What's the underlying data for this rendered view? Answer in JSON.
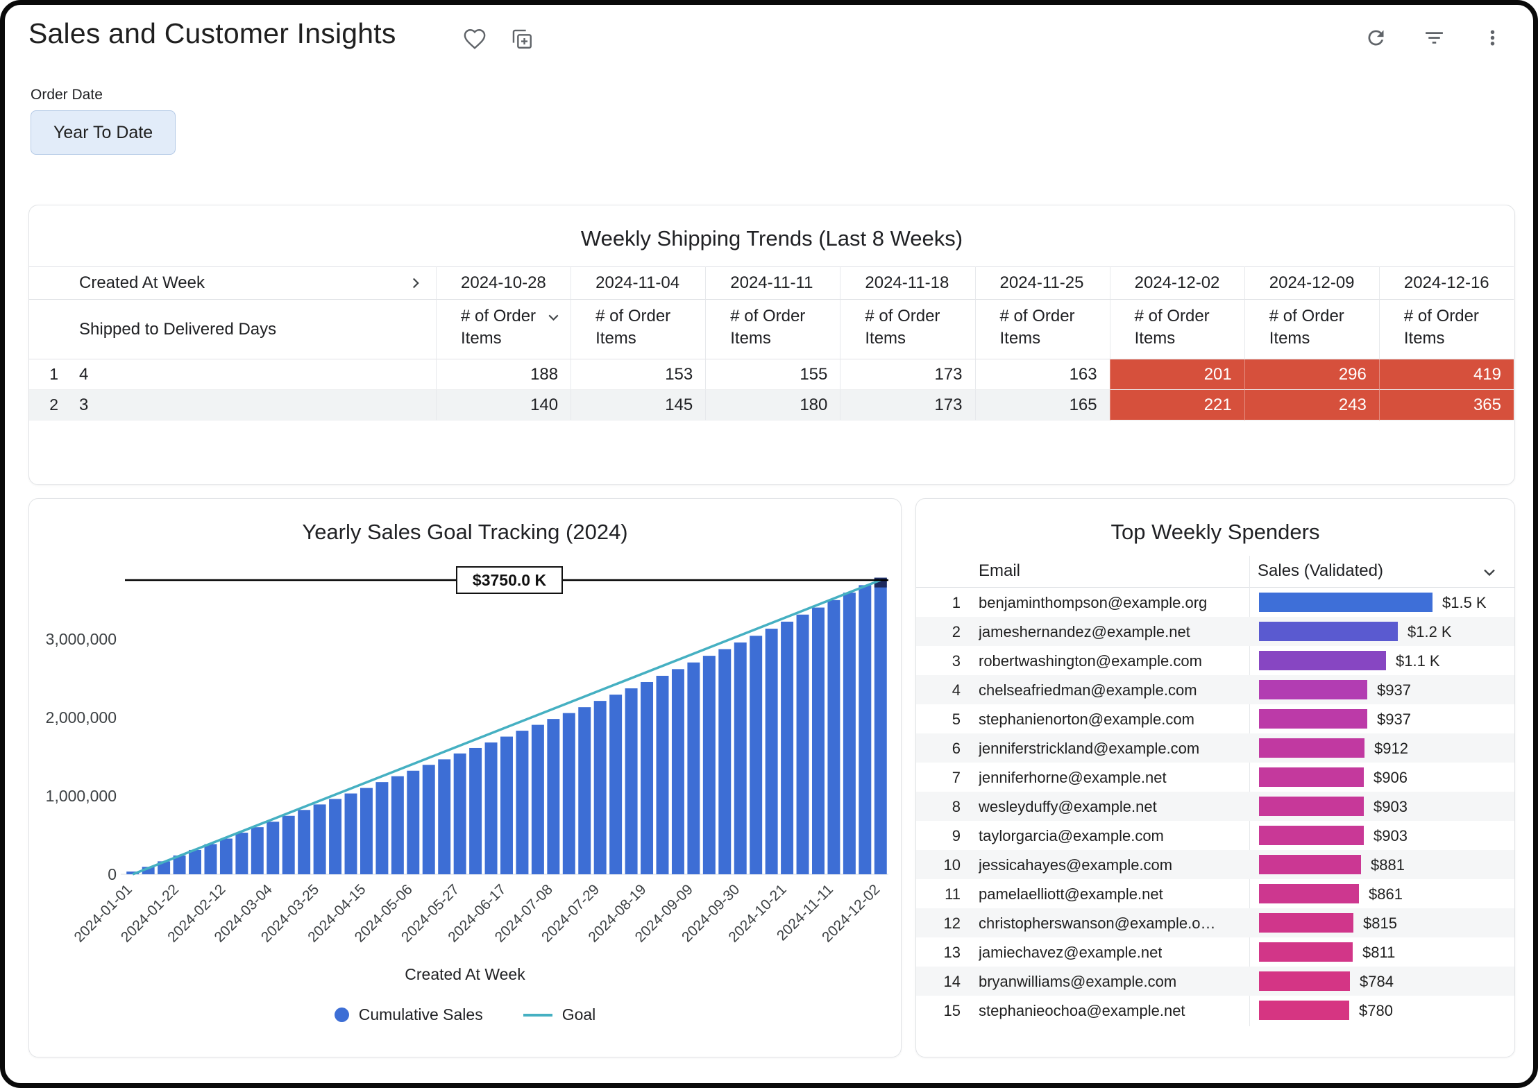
{
  "header": {
    "title": "Sales and Customer Insights"
  },
  "filter": {
    "label": "Order Date",
    "value": "Year To Date"
  },
  "chart_data": [
    {
      "id": "weekly_shipping_trends",
      "type": "table",
      "title": "Weekly Shipping Trends (Last 8 Weeks)",
      "row_header": "Created At Week",
      "col_header": "Shipped to Delivered Days",
      "measure_label": "# of Order Items",
      "columns": [
        "2024-10-28",
        "2024-11-04",
        "2024-11-11",
        "2024-11-18",
        "2024-11-25",
        "2024-12-02",
        "2024-12-09",
        "2024-12-16"
      ],
      "rows": [
        {
          "rank": 1,
          "label": "4",
          "values": [
            188,
            153,
            155,
            173,
            163,
            201,
            296,
            419
          ]
        },
        {
          "rank": 2,
          "label": "3",
          "values": [
            140,
            145,
            180,
            173,
            165,
            221,
            243,
            365
          ]
        }
      ],
      "alert_start_index": 5,
      "alert_color": "#d6503c"
    },
    {
      "id": "yearly_sales_goal_tracking",
      "type": "bar",
      "title": "Yearly Sales Goal Tracking (2024)",
      "xlabel": "Created At Week",
      "ylabel": "",
      "ylim": [
        0,
        3900000
      ],
      "yticks": [
        0,
        1000000,
        2000000,
        3000000
      ],
      "ytick_labels": [
        "0",
        "1,000,000",
        "2,000,000",
        "3,000,000"
      ],
      "x_tick_every": 3,
      "x": [
        "2024-01-01",
        "2024-01-08",
        "2024-01-15",
        "2024-01-22",
        "2024-01-29",
        "2024-02-05",
        "2024-02-12",
        "2024-02-19",
        "2024-02-26",
        "2024-03-04",
        "2024-03-11",
        "2024-03-18",
        "2024-03-25",
        "2024-04-01",
        "2024-04-08",
        "2024-04-15",
        "2024-04-22",
        "2024-04-29",
        "2024-05-06",
        "2024-05-13",
        "2024-05-20",
        "2024-05-27",
        "2024-06-03",
        "2024-06-10",
        "2024-06-17",
        "2024-06-24",
        "2024-07-01",
        "2024-07-08",
        "2024-07-15",
        "2024-07-22",
        "2024-07-29",
        "2024-08-05",
        "2024-08-12",
        "2024-08-19",
        "2024-08-26",
        "2024-09-02",
        "2024-09-09",
        "2024-09-16",
        "2024-09-23",
        "2024-09-30",
        "2024-10-07",
        "2024-10-14",
        "2024-10-21",
        "2024-10-28",
        "2024-11-04",
        "2024-11-11",
        "2024-11-18",
        "2024-11-25",
        "2024-12-02"
      ],
      "series": [
        {
          "name": "Cumulative Sales",
          "type": "bar",
          "color": "#3d6ed5",
          "values": [
            35000,
            95000,
            165000,
            240000,
            310000,
            385000,
            455000,
            530000,
            600000,
            670000,
            745000,
            820000,
            890000,
            960000,
            1030000,
            1100000,
            1175000,
            1250000,
            1320000,
            1395000,
            1465000,
            1540000,
            1610000,
            1680000,
            1755000,
            1830000,
            1905000,
            1980000,
            2055000,
            2130000,
            2210000,
            2290000,
            2370000,
            2450000,
            2530000,
            2615000,
            2700000,
            2785000,
            2870000,
            2955000,
            3040000,
            3130000,
            3220000,
            3310000,
            3400000,
            3495000,
            3590000,
            3685000,
            3780000
          ]
        },
        {
          "name": "Goal",
          "type": "line",
          "color": "#45b0c2",
          "start": 0,
          "end": 3750000
        }
      ],
      "reference_line": {
        "value": 3750000,
        "label": "$3750.0 K",
        "color": "#000000"
      },
      "last_bar_cap_color": "#1d2a5e",
      "legend_position": "bottom",
      "grid": false
    },
    {
      "id": "top_weekly_spenders",
      "type": "bar",
      "orientation": "horizontal",
      "title": "Top Weekly Spenders",
      "columns": [
        "Email",
        "Sales (Validated)"
      ],
      "max_value": 1500,
      "rows": [
        {
          "rank": 1,
          "email": "benjaminthompson@example.org",
          "value": 1500,
          "label": "$1.5 K",
          "color": "#3e6fd8"
        },
        {
          "rank": 2,
          "email": "jameshernandez@example.net",
          "value": 1200,
          "label": "$1.2 K",
          "color": "#5a5ad0"
        },
        {
          "rank": 3,
          "email": "robertwashington@example.com",
          "value": 1100,
          "label": "$1.1 K",
          "color": "#8746c2"
        },
        {
          "rank": 4,
          "email": "chelseafriedman@example.com",
          "value": 937,
          "label": "$937",
          "color": "#b23db2"
        },
        {
          "rank": 5,
          "email": "stephanienorton@example.com",
          "value": 937,
          "label": "$937",
          "color": "#bc3aa8"
        },
        {
          "rank": 6,
          "email": "jenniferstrickland@example.com",
          "value": 912,
          "label": "$912",
          "color": "#c139a1"
        },
        {
          "rank": 7,
          "email": "jenniferhorne@example.net",
          "value": 906,
          "label": "$906",
          "color": "#c4399d"
        },
        {
          "rank": 8,
          "email": "wesleyduffy@example.net",
          "value": 903,
          "label": "$903",
          "color": "#c73899"
        },
        {
          "rank": 9,
          "email": "taylorgarcia@example.com",
          "value": 903,
          "label": "$903",
          "color": "#c93896"
        },
        {
          "rank": 10,
          "email": "jessicahayes@example.com",
          "value": 881,
          "label": "$881",
          "color": "#cb3793"
        },
        {
          "rank": 11,
          "email": "pamelaelliott@example.net",
          "value": 861,
          "label": "$861",
          "color": "#cd378f"
        },
        {
          "rank": 12,
          "email": "christopherswanson@example.o…",
          "value": 815,
          "label": "$815",
          "color": "#d0368b"
        },
        {
          "rank": 13,
          "email": "jamiechavez@example.net",
          "value": 811,
          "label": "$811",
          "color": "#d23688"
        },
        {
          "rank": 14,
          "email": "bryanwilliams@example.com",
          "value": 784,
          "label": "$784",
          "color": "#d43585"
        },
        {
          "rank": 15,
          "email": "stephanieochoa@example.net",
          "value": 780,
          "label": "$780",
          "color": "#d63582"
        }
      ]
    }
  ]
}
